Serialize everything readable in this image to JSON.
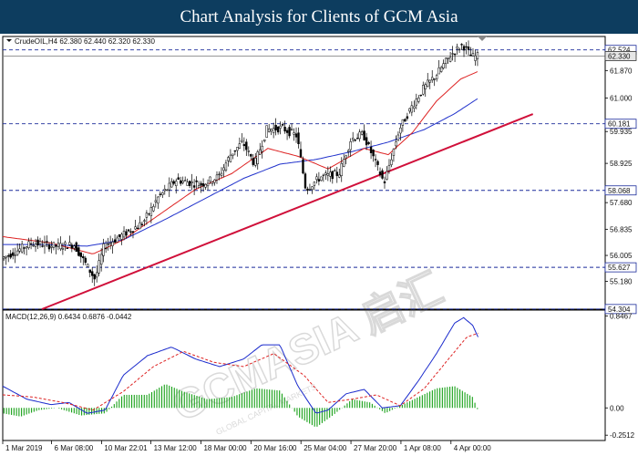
{
  "header": {
    "title": "Chart Analysis for Clients of GCM Asia"
  },
  "watermark": {
    "main": "GCMASIA 启汇",
    "sub": "GLOBAL CAPITAL MARKETS"
  },
  "chart_data": {
    "type": "candlestick",
    "symbol_info": "CrudeOIL,H4  62.380 62.440 62.320 62.330",
    "price_ylim": [
      54.3,
      62.95
    ],
    "price_ticks": [
      "61.870",
      "61.000",
      "59.935",
      "58.925",
      "57.680",
      "56.835",
      "56.005",
      "55.180"
    ],
    "horizontal_levels": [
      {
        "value": 62.524,
        "label": "62.524",
        "style": "dashed-blue-box"
      },
      {
        "value": 62.33,
        "label": "62.330",
        "style": "current-price-box"
      },
      {
        "value": 60.181,
        "label": "60.181",
        "style": "dashed-blue-box"
      },
      {
        "value": 58.068,
        "label": "58.068",
        "style": "dashed-blue-box"
      },
      {
        "value": 55.627,
        "label": "55.627",
        "style": "dashed-blue-box"
      },
      {
        "value": 54.304,
        "label": "54.304",
        "style": "dashed-blue-box"
      }
    ],
    "trendline": {
      "from": [
        0.065,
        54.3
      ],
      "to": [
        0.88,
        60.49
      ],
      "color": "#d0103a"
    },
    "price_anchors": [
      [
        0.0,
        55.9
      ],
      [
        0.05,
        56.4
      ],
      [
        0.09,
        56.3
      ],
      [
        0.12,
        56.35
      ],
      [
        0.155,
        55.25
      ],
      [
        0.17,
        56.3
      ],
      [
        0.205,
        56.7
      ],
      [
        0.235,
        57.05
      ],
      [
        0.26,
        57.85
      ],
      [
        0.29,
        58.4
      ],
      [
        0.33,
        58.25
      ],
      [
        0.36,
        58.5
      ],
      [
        0.38,
        59.2
      ],
      [
        0.4,
        59.6
      ],
      [
        0.42,
        58.9
      ],
      [
        0.44,
        60.0
      ],
      [
        0.465,
        60.05
      ],
      [
        0.49,
        59.8
      ],
      [
        0.505,
        58.1
      ],
      [
        0.53,
        58.5
      ],
      [
        0.56,
        58.6
      ],
      [
        0.58,
        59.7
      ],
      [
        0.6,
        59.85
      ],
      [
        0.615,
        59.2
      ],
      [
        0.635,
        58.3
      ],
      [
        0.66,
        60.0
      ],
      [
        0.68,
        60.7
      ],
      [
        0.7,
        61.3
      ],
      [
        0.72,
        61.7
      ],
      [
        0.745,
        62.35
      ],
      [
        0.765,
        62.7
      ],
      [
        0.78,
        62.3
      ],
      [
        0.79,
        62.33
      ]
    ],
    "ma_red_anchors": [
      [
        0.0,
        56.6
      ],
      [
        0.08,
        56.4
      ],
      [
        0.15,
        56.05
      ],
      [
        0.2,
        56.5
      ],
      [
        0.26,
        57.3
      ],
      [
        0.32,
        58.1
      ],
      [
        0.38,
        58.6
      ],
      [
        0.44,
        59.4
      ],
      [
        0.49,
        59.15
      ],
      [
        0.54,
        58.75
      ],
      [
        0.6,
        59.4
      ],
      [
        0.64,
        59.2
      ],
      [
        0.68,
        59.9
      ],
      [
        0.72,
        60.9
      ],
      [
        0.76,
        61.6
      ],
      [
        0.79,
        61.85
      ]
    ],
    "ma_blue_anchors": [
      [
        0.0,
        56.35
      ],
      [
        0.07,
        56.35
      ],
      [
        0.14,
        56.3
      ],
      [
        0.2,
        56.5
      ],
      [
        0.27,
        57.15
      ],
      [
        0.34,
        57.85
      ],
      [
        0.4,
        58.45
      ],
      [
        0.46,
        58.9
      ],
      [
        0.52,
        59.05
      ],
      [
        0.58,
        59.3
      ],
      [
        0.64,
        59.6
      ],
      [
        0.7,
        60.0
      ],
      [
        0.75,
        60.5
      ],
      [
        0.79,
        61.0
      ]
    ],
    "macd": {
      "label": "MACD(12,26,9)  0.6434  0.6876  -0.0442",
      "ylim": [
        -0.3,
        0.9
      ],
      "ticks": [
        "0.8467",
        "0.00",
        "-0.2512"
      ],
      "hist_anchors": [
        [
          0.0,
          -0.05
        ],
        [
          0.03,
          -0.08
        ],
        [
          0.06,
          -0.02
        ],
        [
          0.09,
          0.0
        ],
        [
          0.13,
          -0.07
        ],
        [
          0.17,
          -0.05
        ],
        [
          0.2,
          0.12
        ],
        [
          0.24,
          0.12
        ],
        [
          0.27,
          0.22
        ],
        [
          0.3,
          0.15
        ],
        [
          0.34,
          0.08
        ],
        [
          0.38,
          0.1
        ],
        [
          0.42,
          0.18
        ],
        [
          0.46,
          0.16
        ],
        [
          0.49,
          -0.08
        ],
        [
          0.52,
          -0.18
        ],
        [
          0.55,
          -0.06
        ],
        [
          0.58,
          0.08
        ],
        [
          0.61,
          0.05
        ],
        [
          0.635,
          -0.05
        ],
        [
          0.66,
          0.02
        ],
        [
          0.69,
          0.1
        ],
        [
          0.72,
          0.18
        ],
        [
          0.75,
          0.2
        ],
        [
          0.78,
          0.1
        ],
        [
          0.79,
          -0.04
        ]
      ],
      "macd_anchors": [
        [
          0.0,
          0.2
        ],
        [
          0.04,
          0.08
        ],
        [
          0.08,
          0.03
        ],
        [
          0.11,
          0.05
        ],
        [
          0.14,
          -0.05
        ],
        [
          0.17,
          -0.02
        ],
        [
          0.2,
          0.3
        ],
        [
          0.24,
          0.48
        ],
        [
          0.28,
          0.56
        ],
        [
          0.32,
          0.45
        ],
        [
          0.36,
          0.38
        ],
        [
          0.4,
          0.45
        ],
        [
          0.43,
          0.58
        ],
        [
          0.46,
          0.58
        ],
        [
          0.49,
          0.2
        ],
        [
          0.52,
          -0.05
        ],
        [
          0.54,
          -0.02
        ],
        [
          0.57,
          0.13
        ],
        [
          0.6,
          0.17
        ],
        [
          0.63,
          0.0
        ],
        [
          0.66,
          0.02
        ],
        [
          0.69,
          0.25
        ],
        [
          0.72,
          0.5
        ],
        [
          0.75,
          0.78
        ],
        [
          0.765,
          0.83
        ],
        [
          0.78,
          0.76
        ],
        [
          0.79,
          0.64
        ]
      ],
      "signal_anchors": [
        [
          0.0,
          0.12
        ],
        [
          0.05,
          0.1
        ],
        [
          0.1,
          0.05
        ],
        [
          0.15,
          -0.02
        ],
        [
          0.2,
          0.15
        ],
        [
          0.25,
          0.38
        ],
        [
          0.3,
          0.52
        ],
        [
          0.35,
          0.42
        ],
        [
          0.4,
          0.38
        ],
        [
          0.45,
          0.5
        ],
        [
          0.5,
          0.3
        ],
        [
          0.54,
          0.05
        ],
        [
          0.58,
          0.08
        ],
        [
          0.62,
          0.12
        ],
        [
          0.66,
          0.02
        ],
        [
          0.7,
          0.18
        ],
        [
          0.74,
          0.45
        ],
        [
          0.77,
          0.65
        ],
        [
          0.79,
          0.69
        ]
      ]
    },
    "x_ticks": [
      {
        "label": "1 Mar 2019",
        "pos": 0.0
      },
      {
        "label": "6 Mar 08:00",
        "pos": 0.081
      },
      {
        "label": "10 Mar 22:01",
        "pos": 0.164
      },
      {
        "label": "13 Mar 12:00",
        "pos": 0.246
      },
      {
        "label": "18 Mar 00:00",
        "pos": 0.329
      },
      {
        "label": "20 Mar 16:00",
        "pos": 0.412
      },
      {
        "label": "25 Mar 04:00",
        "pos": 0.495
      },
      {
        "label": "27 Mar 20:00",
        "pos": 0.578
      },
      {
        "label": "1 Apr 08:00",
        "pos": 0.661
      },
      {
        "label": "4 Apr 00:00",
        "pos": 0.744
      }
    ]
  }
}
